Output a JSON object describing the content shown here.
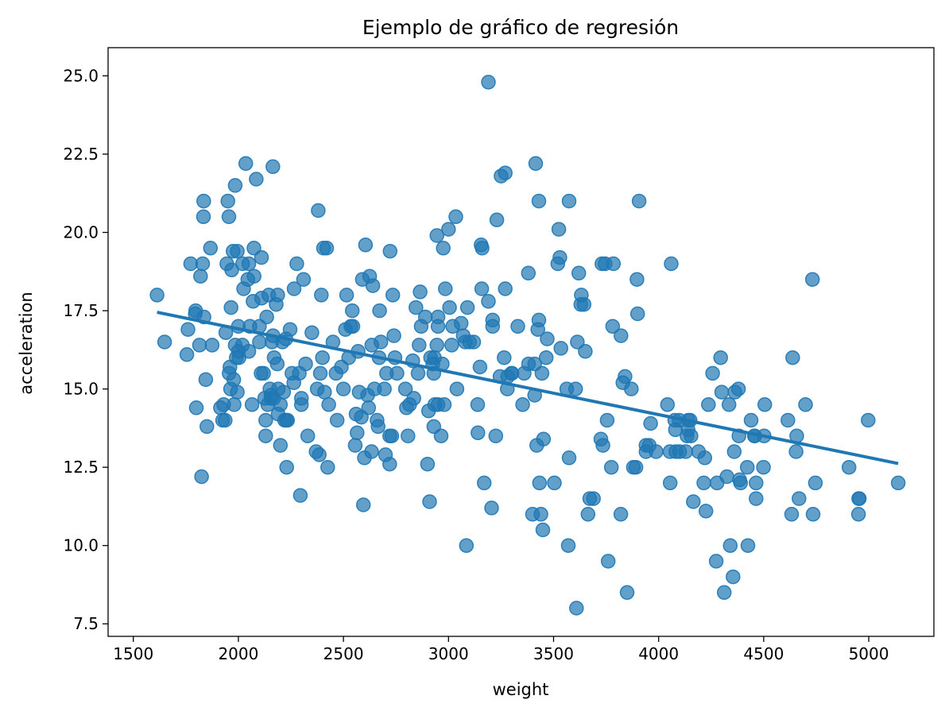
{
  "chart_data": {
    "type": "scatter",
    "title": "Ejemplo de gráfico de regresión",
    "xlabel": "weight",
    "ylabel": "acceleration",
    "xlim": [
      1380,
      5310
    ],
    "ylim": [
      7.1,
      25.9
    ],
    "xticks": [
      1500,
      2000,
      2500,
      3000,
      3500,
      4000,
      4500,
      5000
    ],
    "xtick_labels": [
      "1500",
      "2000",
      "2500",
      "3000",
      "3500",
      "4000",
      "4500",
      "5000"
    ],
    "yticks": [
      7.5,
      10.0,
      12.5,
      15.0,
      17.5,
      20.0,
      22.5,
      25.0
    ],
    "ytick_labels": [
      "7.5",
      "10.0",
      "12.5",
      "15.0",
      "17.5",
      "20.0",
      "22.5",
      "25.0"
    ],
    "grid": false,
    "color": "#1f77b4",
    "regression_line": {
      "x": [
        1613,
        5140
      ],
      "y": [
        17.45,
        12.62
      ]
    },
    "points": [
      [
        1613,
        18.0
      ],
      [
        1649,
        16.5
      ],
      [
        1755,
        16.1
      ],
      [
        1760,
        16.9
      ],
      [
        1773,
        19.0
      ],
      [
        1795,
        17.4
      ],
      [
        1797,
        17.5
      ],
      [
        1800,
        14.4
      ],
      [
        1815,
        16.4
      ],
      [
        1820,
        18.6
      ],
      [
        1825,
        12.2
      ],
      [
        1830,
        19.0
      ],
      [
        1834,
        20.5
      ],
      [
        1835,
        21.0
      ],
      [
        1836,
        17.3
      ],
      [
        1845,
        15.3
      ],
      [
        1850,
        13.8
      ],
      [
        1867,
        19.5
      ],
      [
        1875,
        16.4
      ],
      [
        1915,
        14.4
      ],
      [
        1925,
        14.0
      ],
      [
        1930,
        14.5
      ],
      [
        1937,
        14.0
      ],
      [
        1940,
        16.8
      ],
      [
        1945,
        19.0
      ],
      [
        1950,
        21.0
      ],
      [
        1955,
        20.5
      ],
      [
        1956,
        15.5
      ],
      [
        1960,
        15.7
      ],
      [
        1963,
        15.0
      ],
      [
        1965,
        17.6
      ],
      [
        1968,
        18.8
      ],
      [
        1975,
        19.4
      ],
      [
        1978,
        15.3
      ],
      [
        1980,
        14.5
      ],
      [
        1985,
        21.5
      ],
      [
        1985,
        16.4
      ],
      [
        1990,
        16.0
      ],
      [
        1995,
        19.4
      ],
      [
        1995,
        14.9
      ],
      [
        2000,
        17.0
      ],
      [
        2000,
        16.2
      ],
      [
        2003,
        16.0
      ],
      [
        2019,
        16.4
      ],
      [
        2020,
        19.0
      ],
      [
        2025,
        18.2
      ],
      [
        2035,
        22.2
      ],
      [
        2045,
        18.5
      ],
      [
        2050,
        19.0
      ],
      [
        2050,
        16.2
      ],
      [
        2055,
        17.0
      ],
      [
        2065,
        14.5
      ],
      [
        2070,
        17.8
      ],
      [
        2074,
        19.5
      ],
      [
        2075,
        18.6
      ],
      [
        2085,
        21.7
      ],
      [
        2100,
        17.0
      ],
      [
        2100,
        16.5
      ],
      [
        2108,
        15.5
      ],
      [
        2110,
        19.2
      ],
      [
        2110,
        17.9
      ],
      [
        2120,
        15.5
      ],
      [
        2125,
        14.7
      ],
      [
        2130,
        14.0
      ],
      [
        2130,
        13.5
      ],
      [
        2135,
        17.3
      ],
      [
        2140,
        14.5
      ],
      [
        2145,
        18.0
      ],
      [
        2150,
        15.0
      ],
      [
        2155,
        14.7
      ],
      [
        2155,
        14.8
      ],
      [
        2160,
        16.5
      ],
      [
        2164,
        22.1
      ],
      [
        2165,
        16.7
      ],
      [
        2168,
        14.7
      ],
      [
        2170,
        16.0
      ],
      [
        2180,
        17.7
      ],
      [
        2185,
        15.8
      ],
      [
        2187,
        18.0
      ],
      [
        2189,
        14.2
      ],
      [
        2190,
        15.0
      ],
      [
        2200,
        13.2
      ],
      [
        2200,
        14.5
      ],
      [
        2210,
        16.5
      ],
      [
        2215,
        14.9
      ],
      [
        2220,
        14.0
      ],
      [
        2226,
        16.6
      ],
      [
        2228,
        14.0
      ],
      [
        2230,
        12.5
      ],
      [
        2234,
        14.0
      ],
      [
        2246,
        16.9
      ],
      [
        2255,
        15.5
      ],
      [
        2264,
        15.2
      ],
      [
        2265,
        18.2
      ],
      [
        2278,
        19.0
      ],
      [
        2290,
        15.5
      ],
      [
        2295,
        11.6
      ],
      [
        2300,
        14.7
      ],
      [
        2300,
        14.5
      ],
      [
        2310,
        18.5
      ],
      [
        2320,
        15.8
      ],
      [
        2330,
        13.5
      ],
      [
        2350,
        16.8
      ],
      [
        2370,
        13.0
      ],
      [
        2375,
        15.0
      ],
      [
        2380,
        20.7
      ],
      [
        2385,
        12.9
      ],
      [
        2390,
        15.5
      ],
      [
        2395,
        18.0
      ],
      [
        2400,
        16.0
      ],
      [
        2405,
        19.5
      ],
      [
        2410,
        14.9
      ],
      [
        2420,
        19.5
      ],
      [
        2425,
        12.5
      ],
      [
        2430,
        14.5
      ],
      [
        2450,
        16.5
      ],
      [
        2465,
        15.5
      ],
      [
        2470,
        14.0
      ],
      [
        2490,
        15.7
      ],
      [
        2500,
        15.0
      ],
      [
        2510,
        16.9
      ],
      [
        2515,
        18.0
      ],
      [
        2525,
        16.0
      ],
      [
        2535,
        17.0
      ],
      [
        2542,
        17.5
      ],
      [
        2545,
        17.0
      ],
      [
        2556,
        13.2
      ],
      [
        2560,
        14.2
      ],
      [
        2565,
        13.6
      ],
      [
        2570,
        16.2
      ],
      [
        2575,
        14.9
      ],
      [
        2585,
        14.1
      ],
      [
        2590,
        18.5
      ],
      [
        2595,
        11.3
      ],
      [
        2600,
        12.8
      ],
      [
        2605,
        19.6
      ],
      [
        2615,
        14.8
      ],
      [
        2620,
        14.4
      ],
      [
        2625,
        18.6
      ],
      [
        2634,
        13.0
      ],
      [
        2635,
        16.4
      ],
      [
        2640,
        18.3
      ],
      [
        2648,
        15.0
      ],
      [
        2660,
        14.0
      ],
      [
        2665,
        13.8
      ],
      [
        2670,
        16.0
      ],
      [
        2672,
        17.5
      ],
      [
        2678,
        16.5
      ],
      [
        2695,
        15.0
      ],
      [
        2700,
        12.9
      ],
      [
        2705,
        15.5
      ],
      [
        2720,
        13.5
      ],
      [
        2720,
        12.6
      ],
      [
        2722,
        19.4
      ],
      [
        2730,
        13.5
      ],
      [
        2735,
        18.0
      ],
      [
        2740,
        16.7
      ],
      [
        2745,
        16.0
      ],
      [
        2755,
        15.5
      ],
      [
        2795,
        15.0
      ],
      [
        2800,
        14.4
      ],
      [
        2807,
        13.5
      ],
      [
        2815,
        14.5
      ],
      [
        2830,
        15.9
      ],
      [
        2835,
        14.7
      ],
      [
        2845,
        17.6
      ],
      [
        2855,
        15.5
      ],
      [
        2860,
        16.4
      ],
      [
        2865,
        18.1
      ],
      [
        2870,
        17.0
      ],
      [
        2890,
        17.3
      ],
      [
        2900,
        12.6
      ],
      [
        2905,
        14.3
      ],
      [
        2910,
        11.4
      ],
      [
        2915,
        16.0
      ],
      [
        2925,
        15.8
      ],
      [
        2930,
        13.8
      ],
      [
        2930,
        15.5
      ],
      [
        2933,
        16.0
      ],
      [
        2935,
        14.5
      ],
      [
        2945,
        16.4
      ],
      [
        2945,
        19.9
      ],
      [
        2950,
        14.5
      ],
      [
        2950,
        17.3
      ],
      [
        2950,
        17.0
      ],
      [
        2965,
        13.5
      ],
      [
        2970,
        15.8
      ],
      [
        2975,
        19.5
      ],
      [
        2980,
        14.5
      ],
      [
        2985,
        18.2
      ],
      [
        3000,
        20.1
      ],
      [
        3005,
        17.6
      ],
      [
        3015,
        16.4
      ],
      [
        3020,
        17.0
      ],
      [
        3035,
        20.5
      ],
      [
        3040,
        15.0
      ],
      [
        3060,
        17.1
      ],
      [
        3070,
        16.7
      ],
      [
        3080,
        16.5
      ],
      [
        3085,
        10.0
      ],
      [
        3090,
        17.6
      ],
      [
        3100,
        16.5
      ],
      [
        3120,
        16.5
      ],
      [
        3139,
        14.5
      ],
      [
        3140,
        13.6
      ],
      [
        3150,
        15.7
      ],
      [
        3155,
        19.6
      ],
      [
        3158,
        18.2
      ],
      [
        3160,
        19.5
      ],
      [
        3170,
        12.0
      ],
      [
        3190,
        24.8
      ],
      [
        3190,
        17.8
      ],
      [
        3205,
        11.2
      ],
      [
        3210,
        17.2
      ],
      [
        3210,
        17.0
      ],
      [
        3225,
        13.5
      ],
      [
        3230,
        20.4
      ],
      [
        3245,
        15.4
      ],
      [
        3250,
        21.8
      ],
      [
        3265,
        16.0
      ],
      [
        3270,
        18.2
      ],
      [
        3270,
        21.9
      ],
      [
        3280,
        15.0
      ],
      [
        3282,
        15.4
      ],
      [
        3300,
        15.5
      ],
      [
        3302,
        15.5
      ],
      [
        3330,
        17.0
      ],
      [
        3353,
        14.5
      ],
      [
        3360,
        15.5
      ],
      [
        3380,
        18.7
      ],
      [
        3381,
        15.8
      ],
      [
        3400,
        11.0
      ],
      [
        3410,
        14.8
      ],
      [
        3410,
        15.8
      ],
      [
        3415,
        22.2
      ],
      [
        3420,
        13.2
      ],
      [
        3425,
        16.9
      ],
      [
        3430,
        21.0
      ],
      [
        3430,
        17.2
      ],
      [
        3433,
        12.0
      ],
      [
        3440,
        11.0
      ],
      [
        3445,
        15.5
      ],
      [
        3449,
        10.5
      ],
      [
        3452,
        13.4
      ],
      [
        3465,
        16.0
      ],
      [
        3470,
        16.6
      ],
      [
        3504,
        12.0
      ],
      [
        3520,
        19.0
      ],
      [
        3525,
        20.1
      ],
      [
        3530,
        19.2
      ],
      [
        3535,
        16.3
      ],
      [
        3563,
        15.0
      ],
      [
        3570,
        10.0
      ],
      [
        3574,
        21.0
      ],
      [
        3574,
        12.8
      ],
      [
        3605,
        15.0
      ],
      [
        3609,
        8.0
      ],
      [
        3613,
        16.5
      ],
      [
        3620,
        18.7
      ],
      [
        3630,
        17.7
      ],
      [
        3632,
        18.0
      ],
      [
        3645,
        17.7
      ],
      [
        3651,
        16.2
      ],
      [
        3664,
        11.0
      ],
      [
        3672,
        11.5
      ],
      [
        3690,
        11.5
      ],
      [
        3725,
        13.4
      ],
      [
        3730,
        19.0
      ],
      [
        3735,
        13.2
      ],
      [
        3745,
        19.0
      ],
      [
        3755,
        14.0
      ],
      [
        3760,
        9.5
      ],
      [
        3775,
        12.5
      ],
      [
        3781,
        17.0
      ],
      [
        3785,
        19.0
      ],
      [
        3820,
        11.0
      ],
      [
        3821,
        16.7
      ],
      [
        3830,
        15.2
      ],
      [
        3840,
        15.4
      ],
      [
        3850,
        8.5
      ],
      [
        3870,
        15.0
      ],
      [
        3880,
        12.5
      ],
      [
        3892,
        12.5
      ],
      [
        3897,
        18.5
      ],
      [
        3900,
        17.4
      ],
      [
        3907,
        21.0
      ],
      [
        3940,
        13.0
      ],
      [
        3940,
        13.2
      ],
      [
        3955,
        13.2
      ],
      [
        3962,
        13.9
      ],
      [
        3988,
        13.0
      ],
      [
        4042,
        14.5
      ],
      [
        4054,
        13.0
      ],
      [
        4055,
        12.0
      ],
      [
        4060,
        19.0
      ],
      [
        4077,
        14.0
      ],
      [
        4080,
        13.7
      ],
      [
        4082,
        13.0
      ],
      [
        4098,
        14.0
      ],
      [
        4100,
        13.0
      ],
      [
        4129,
        13.0
      ],
      [
        4135,
        13.5
      ],
      [
        4140,
        13.7
      ],
      [
        4141,
        14.0
      ],
      [
        4150,
        14.0
      ],
      [
        4154,
        13.5
      ],
      [
        4165,
        11.4
      ],
      [
        4190,
        13.0
      ],
      [
        4215,
        12.0
      ],
      [
        4220,
        12.8
      ],
      [
        4225,
        11.1
      ],
      [
        4237,
        14.5
      ],
      [
        4257,
        15.5
      ],
      [
        4274,
        9.5
      ],
      [
        4278,
        12.0
      ],
      [
        4295,
        16.0
      ],
      [
        4300,
        14.9
      ],
      [
        4312,
        8.5
      ],
      [
        4325,
        12.2
      ],
      [
        4335,
        14.5
      ],
      [
        4341,
        10.0
      ],
      [
        4354,
        9.0
      ],
      [
        4360,
        13.0
      ],
      [
        4363,
        14.9
      ],
      [
        4380,
        15.0
      ],
      [
        4382,
        13.5
      ],
      [
        4385,
        12.1
      ],
      [
        4390,
        12.0
      ],
      [
        4425,
        10.0
      ],
      [
        4422,
        12.5
      ],
      [
        4440,
        14.0
      ],
      [
        4456,
        13.5
      ],
      [
        4457,
        13.5
      ],
      [
        4464,
        11.5
      ],
      [
        4464,
        12.0
      ],
      [
        4499,
        12.5
      ],
      [
        4502,
        13.5
      ],
      [
        4505,
        14.5
      ],
      [
        4615,
        14.0
      ],
      [
        4633,
        11.0
      ],
      [
        4638,
        16.0
      ],
      [
        4654,
        13.0
      ],
      [
        4657,
        13.5
      ],
      [
        4668,
        11.5
      ],
      [
        4699,
        14.5
      ],
      [
        4732,
        18.5
      ],
      [
        4735,
        11.0
      ],
      [
        4746,
        12.0
      ],
      [
        4906,
        12.5
      ],
      [
        4951,
        11.0
      ],
      [
        4952,
        11.5
      ],
      [
        4955,
        11.5
      ],
      [
        4997,
        14.0
      ],
      [
        5140,
        12.0
      ]
    ]
  }
}
